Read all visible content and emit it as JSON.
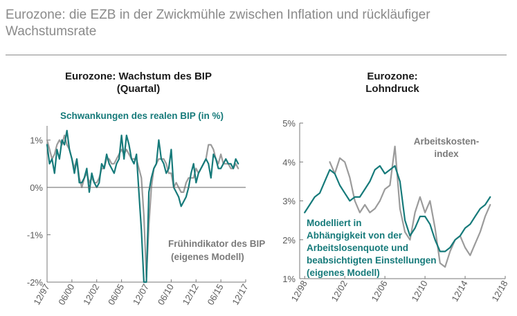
{
  "page": {
    "title": "Eurozone: die EZB in der Zwickmühle zwischen Inflation und rückläufiger Wachstumsrate"
  },
  "colors": {
    "teal": "#167a7a",
    "grey": "#9b9b9b",
    "axis": "#777777"
  },
  "chart_data": [
    {
      "type": "line",
      "title": "Eurozone: Wachstum des BIP",
      "subtitle": "(Quartal)",
      "ylim": [
        -2,
        1.3
      ],
      "y_ticks": [
        1,
        0,
        -1,
        -2
      ],
      "y_tick_labels": [
        "1%",
        "0%",
        "-1%",
        "-2%"
      ],
      "x_range": [
        1998,
        2018
      ],
      "x_ticks": [
        1998,
        2000.5,
        2003,
        2005.5,
        2008,
        2010.5,
        2013,
        2015.5,
        2018
      ],
      "x_tick_labels": [
        "12/97",
        "06/00",
        "12/02",
        "06/05",
        "12/07",
        "06/10",
        "12/12",
        "06/15",
        "12/17"
      ],
      "series": [
        {
          "name": "Schwankungen des realen BIP (in %)",
          "color": "#167a7a",
          "x": [
            1998.0,
            1998.25,
            1998.5,
            1998.75,
            1999.0,
            1999.25,
            1999.5,
            1999.75,
            2000.0,
            2000.25,
            2000.5,
            2000.75,
            2001.0,
            2001.25,
            2001.5,
            2001.75,
            2002.0,
            2002.25,
            2002.5,
            2002.75,
            2003.0,
            2003.25,
            2003.5,
            2003.75,
            2004.0,
            2004.25,
            2004.5,
            2004.75,
            2005.0,
            2005.25,
            2005.5,
            2005.75,
            2006.0,
            2006.25,
            2006.5,
            2006.75,
            2007.0,
            2007.25,
            2007.5,
            2007.75,
            2008.0,
            2008.25,
            2008.5,
            2008.75,
            2009.0,
            2009.25,
            2009.5,
            2009.75,
            2010.0,
            2010.25,
            2010.5,
            2010.75,
            2011.0,
            2011.25,
            2011.5,
            2011.75,
            2012.0,
            2012.25,
            2012.5,
            2012.75,
            2013.0,
            2013.25,
            2013.5,
            2013.75,
            2014.0,
            2014.25,
            2014.5,
            2014.75,
            2015.0,
            2015.25,
            2015.5,
            2015.75,
            2016.0,
            2016.25,
            2016.5,
            2016.75,
            2017.0,
            2017.25
          ],
          "values": [
            0.9,
            0.5,
            0.6,
            0.3,
            0.8,
            0.6,
            1.0,
            0.9,
            1.2,
            0.8,
            0.6,
            0.3,
            0.6,
            0.1,
            0.1,
            0.2,
            0.4,
            -0.1,
            0.3,
            0.1,
            0.0,
            0.1,
            0.5,
            0.4,
            0.7,
            0.5,
            0.4,
            0.3,
            0.5,
            0.6,
            1.1,
            0.6,
            1.1,
            0.9,
            0.6,
            0.5,
            0.7,
            -0.1,
            -0.9,
            -2.0,
            -2.0,
            -0.1,
            0.2,
            0.4,
            0.5,
            1.0,
            0.6,
            0.5,
            0.3,
            0.4,
            0.8,
            0.0,
            -0.1,
            -0.2,
            -0.4,
            -0.3,
            -0.2,
            0.0,
            0.3,
            0.5,
            0.1,
            0.3,
            0.4,
            0.5,
            0.6,
            0.5,
            0.2,
            0.7,
            0.6,
            0.4,
            0.4,
            0.5,
            0.6,
            0.5,
            0.5,
            0.4,
            0.6,
            0.5
          ]
        },
        {
          "name": "Frühindikator des BIP (eigenes Modell)",
          "color": "#9b9b9b",
          "x": [
            1998.0,
            1998.25,
            1998.5,
            1998.75,
            1999.0,
            1999.25,
            1999.5,
            1999.75,
            2000.0,
            2000.25,
            2000.5,
            2000.75,
            2001.0,
            2001.25,
            2001.5,
            2001.75,
            2002.0,
            2002.25,
            2002.5,
            2002.75,
            2003.0,
            2003.25,
            2003.5,
            2003.75,
            2004.0,
            2004.25,
            2004.5,
            2004.75,
            2005.0,
            2005.25,
            2005.5,
            2005.75,
            2006.0,
            2006.25,
            2006.5,
            2006.75,
            2007.0,
            2007.25,
            2007.5,
            2007.75,
            2008.0,
            2008.25,
            2008.5,
            2008.75,
            2009.0,
            2009.25,
            2009.5,
            2009.75,
            2010.0,
            2010.25,
            2010.5,
            2010.75,
            2011.0,
            2011.25,
            2011.5,
            2011.75,
            2012.0,
            2012.25,
            2012.5,
            2012.75,
            2013.0,
            2013.25,
            2013.5,
            2013.75,
            2014.0,
            2014.25,
            2014.5,
            2014.75,
            2015.0,
            2015.25,
            2015.5,
            2015.75,
            2016.0,
            2016.25,
            2016.5,
            2016.75,
            2017.0,
            2017.25
          ],
          "values": [
            1.0,
            0.8,
            0.6,
            0.7,
            0.9,
            1.0,
            0.9,
            1.1,
            0.9,
            0.8,
            0.6,
            0.4,
            0.6,
            0.2,
            0.0,
            0.2,
            0.3,
            0.1,
            0.2,
            0.1,
            0.1,
            0.2,
            0.4,
            0.4,
            0.6,
            0.6,
            0.5,
            0.5,
            0.6,
            0.7,
            0.8,
            0.7,
            0.8,
            0.7,
            0.6,
            0.6,
            0.6,
            0.4,
            0.2,
            -0.6,
            -1.9,
            -0.8,
            0.0,
            0.4,
            0.5,
            0.6,
            0.6,
            0.6,
            0.5,
            0.3,
            0.3,
            0.0,
            0.1,
            0.0,
            -0.1,
            -0.1,
            0.1,
            0.2,
            0.2,
            0.2,
            0.4,
            0.3,
            0.4,
            0.5,
            0.6,
            0.9,
            0.9,
            0.8,
            0.6,
            0.5,
            0.7,
            0.5,
            0.5,
            0.5,
            0.4,
            0.4,
            0.5,
            0.4
          ]
        }
      ],
      "annotations": {
        "teal_label": "Schwankungen des realen BIP (in %)",
        "grey_label_line1": "Frühindikator des BIP",
        "grey_label_line2": "(eigenes Modell)"
      }
    },
    {
      "type": "line",
      "title": "Eurozone:",
      "subtitle": "Lohndruck",
      "ylim": [
        1,
        5
      ],
      "y_ticks": [
        5,
        4,
        3,
        2,
        1
      ],
      "y_tick_labels": [
        "5%",
        "4%",
        "3%",
        "2%",
        "1%"
      ],
      "x_range": [
        1998.5,
        2019
      ],
      "x_ticks": [
        1999,
        2003,
        2007,
        2011,
        2015,
        2019
      ],
      "x_tick_labels": [
        "12/98",
        "12/02",
        "12/06",
        "12/10",
        "12/14",
        "12/18"
      ],
      "series": [
        {
          "name": "Modelliert in Abhängigkeit von der Arbeitslosenquote und beabsichtigten Einstellungen (eigenes Modell)",
          "color": "#167a7a",
          "x": [
            1999.0,
            1999.5,
            2000.0,
            2000.5,
            2001.0,
            2001.5,
            2002.0,
            2002.5,
            2003.0,
            2003.5,
            2004.0,
            2004.5,
            2005.0,
            2005.5,
            2006.0,
            2006.5,
            2007.0,
            2007.5,
            2008.0,
            2008.5,
            2009.0,
            2009.5,
            2010.0,
            2010.5,
            2011.0,
            2011.5,
            2012.0,
            2012.5,
            2013.0,
            2013.5,
            2014.0,
            2014.5,
            2015.0,
            2015.5,
            2016.0,
            2016.5,
            2017.0,
            2017.5
          ],
          "values": [
            2.7,
            2.9,
            3.1,
            3.2,
            3.5,
            3.8,
            3.7,
            3.4,
            3.2,
            3.0,
            3.1,
            3.1,
            3.3,
            3.5,
            3.8,
            3.9,
            3.7,
            3.8,
            3.9,
            3.5,
            2.5,
            2.1,
            2.3,
            2.6,
            2.6,
            2.4,
            2.0,
            1.7,
            1.7,
            1.8,
            2.0,
            2.1,
            2.3,
            2.4,
            2.6,
            2.8,
            2.9,
            3.1
          ]
        },
        {
          "name": "Arbeitskostenindex",
          "color": "#9b9b9b",
          "x": [
            2001.5,
            2002.0,
            2002.5,
            2003.0,
            2003.5,
            2004.0,
            2004.5,
            2005.0,
            2005.5,
            2006.0,
            2006.5,
            2007.0,
            2007.5,
            2008.0,
            2008.5,
            2009.0,
            2009.5,
            2010.0,
            2010.5,
            2011.0,
            2011.5,
            2012.0,
            2012.5,
            2013.0,
            2013.5,
            2014.0,
            2014.5,
            2015.0,
            2015.5,
            2016.0,
            2016.5,
            2017.0,
            2017.5
          ],
          "values": [
            4.0,
            3.7,
            4.1,
            4.0,
            3.6,
            3.0,
            2.7,
            2.9,
            2.7,
            2.8,
            3.0,
            3.3,
            3.4,
            4.4,
            2.8,
            2.2,
            2.0,
            2.7,
            3.1,
            2.7,
            3.0,
            2.3,
            1.4,
            1.3,
            1.7,
            2.0,
            2.1,
            1.8,
            1.6,
            1.9,
            2.2,
            2.6,
            2.9
          ]
        }
      ],
      "annotations": {
        "grey_label_line1": "Arbeitskosten-",
        "grey_label_line2": "index",
        "teal_label_lines": [
          "Modelliert in",
          "Abhängigkeit von der",
          "Arbeitslosenquote und",
          "beabsichtigten Einstellungen",
          "(eigenes Modell)"
        ]
      }
    }
  ]
}
